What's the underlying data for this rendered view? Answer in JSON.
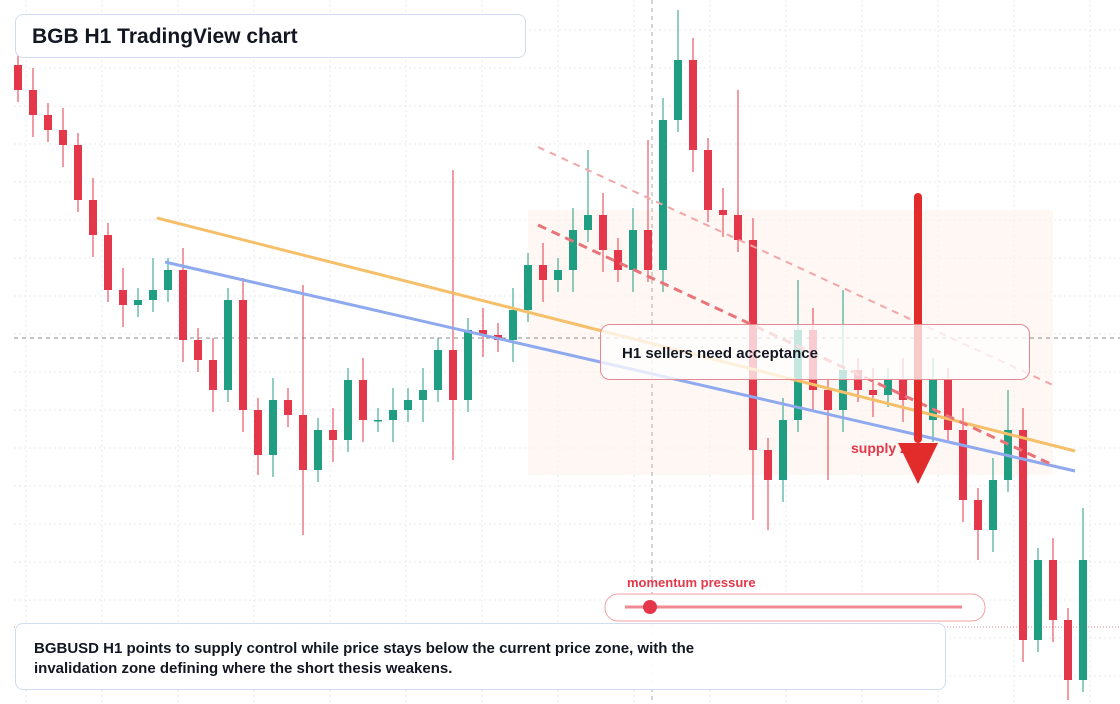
{
  "title": "BGB H1 TradingView chart",
  "callout": "H1 sellers need acceptance",
  "zone_label": "supply zone",
  "momentum_label": "momentum pressure",
  "summary": "BGBUSD H1 points to supply control while price stays below the current price zone, with the invalidation zone defining where the short thesis weakens.",
  "chart_data": {
    "type": "candlestick",
    "up_color": "#1f9e82",
    "down_color": "#e5374a",
    "open": [
      635,
      610,
      585,
      570,
      555,
      500,
      465,
      410,
      395,
      400,
      410,
      430,
      360,
      340,
      310,
      400,
      290,
      245,
      300,
      285,
      230,
      270,
      260,
      320,
      280,
      280,
      290,
      300,
      310,
      350,
      300,
      370,
      365,
      360,
      390,
      435,
      420,
      430,
      470,
      485,
      450,
      430,
      470,
      430,
      580,
      640,
      550,
      490,
      485,
      460,
      250,
      220,
      280,
      370,
      310,
      290,
      330,
      310,
      305,
      320,
      300,
      280,
      320,
      270,
      200,
      170,
      220,
      270,
      60,
      140,
      80,
      20
    ],
    "high": [
      647,
      632,
      597,
      592,
      567,
      522,
      477,
      432,
      412,
      442,
      442,
      452,
      372,
      362,
      412,
      422,
      302,
      322,
      312,
      415,
      282,
      292,
      332,
      342,
      292,
      312,
      312,
      332,
      362,
      530,
      382,
      392,
      377,
      412,
      447,
      457,
      442,
      492,
      550,
      507,
      462,
      492,
      560,
      602,
      690,
      662,
      562,
      512,
      610,
      482,
      262,
      302,
      420,
      392,
      322,
      410,
      342,
      332,
      332,
      342,
      312,
      342,
      332,
      292,
      212,
      242,
      310,
      292,
      152,
      162,
      92,
      192
    ],
    "low": [
      598,
      563,
      558,
      533,
      488,
      443,
      398,
      373,
      383,
      388,
      398,
      338,
      328,
      288,
      298,
      268,
      225,
      223,
      273,
      165,
      218,
      238,
      248,
      258,
      268,
      258,
      278,
      278,
      298,
      240,
      288,
      343,
      348,
      338,
      378,
      398,
      408,
      408,
      458,
      428,
      418,
      408,
      418,
      408,
      568,
      528,
      478,
      463,
      448,
      180,
      170,
      198,
      268,
      288,
      220,
      268,
      298,
      283,
      293,
      278,
      268,
      258,
      258,
      178,
      140,
      148,
      208,
      38,
      48,
      58,
      0,
      8
    ],
    "close": [
      610,
      585,
      570,
      555,
      500,
      465,
      410,
      395,
      400,
      410,
      430,
      360,
      340,
      310,
      400,
      290,
      245,
      300,
      285,
      230,
      270,
      260,
      320,
      280,
      280,
      290,
      300,
      310,
      350,
      300,
      370,
      365,
      360,
      390,
      435,
      420,
      430,
      470,
      485,
      450,
      430,
      470,
      430,
      580,
      640,
      550,
      490,
      485,
      460,
      250,
      220,
      280,
      370,
      310,
      290,
      330,
      310,
      305,
      320,
      300,
      280,
      320,
      270,
      200,
      170,
      220,
      270,
      60,
      140,
      80,
      20,
      140
    ]
  }
}
